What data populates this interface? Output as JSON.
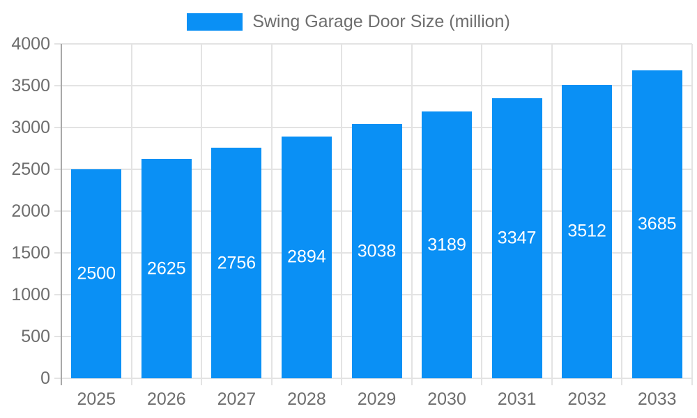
{
  "chart_data": {
    "type": "bar",
    "title": "Swing Garage Door Size (million)",
    "legend_position": "top",
    "categories": [
      "2025",
      "2026",
      "2027",
      "2028",
      "2029",
      "2030",
      "2031",
      "2032",
      "2033"
    ],
    "series": [
      {
        "name": "Swing Garage Door Size (million)",
        "values": [
          2500,
          2625,
          2756,
          2894,
          3038,
          3189,
          3347,
          3512,
          3685
        ]
      }
    ],
    "xlabel": "",
    "ylabel": "",
    "ylim": [
      0,
      4000
    ],
    "yticks": [
      0,
      500,
      1000,
      1500,
      2000,
      2500,
      3000,
      3500,
      4000
    ],
    "grid": true,
    "data_labels_visible": true
  },
  "colors": {
    "bar": "#0a90f5",
    "gridline": "#e3e3e3",
    "axis_line": "#a8a8a8",
    "tick_text": "#6e6e6e",
    "bar_label_text": "#ffffff",
    "background": "#ffffff"
  }
}
